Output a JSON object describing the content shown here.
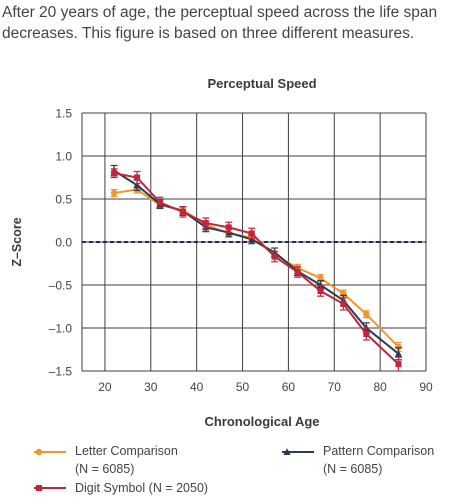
{
  "caption": "After 20 years of age, the perceptual speed across the life span decreases. This figure is based on three different measures.",
  "chart_data": {
    "type": "line",
    "title": "Perceptual Speed",
    "xlabel": "Chronological Age",
    "ylabel": "Z–Score",
    "xlim": [
      15,
      90
    ],
    "ylim": [
      -1.5,
      1.5
    ],
    "x_ticks": [
      "20",
      "30",
      "40",
      "50",
      "60",
      "70",
      "80",
      "90"
    ],
    "y_ticks": [
      "1.5",
      "1.0",
      "0.5",
      "0.0",
      "–0.5",
      "–1.0",
      "–1.5"
    ],
    "grid": true,
    "reference_line": {
      "y": 0.0,
      "style": "dashed",
      "color": "#1f2a55"
    },
    "legend_position": "bottom",
    "series": [
      {
        "name": "Letter Comparison",
        "name_sub": "(N = 6085)",
        "color": "#f0962d",
        "marker": "circle",
        "x": [
          22,
          27,
          32,
          37,
          42,
          47,
          52,
          57,
          62,
          67,
          72,
          77,
          84
        ],
        "y": [
          0.57,
          0.61,
          0.43,
          0.37,
          0.2,
          0.1,
          0.05,
          -0.15,
          -0.3,
          -0.42,
          -0.6,
          -0.84,
          -1.22
        ],
        "err": [
          0.04,
          0.04,
          0.04,
          0.04,
          0.04,
          0.04,
          0.04,
          0.04,
          0.04,
          0.04,
          0.04,
          0.04,
          0.05
        ]
      },
      {
        "name": "Pattern Comparison",
        "name_sub": "(N = 6085)",
        "color": "#2b3a55",
        "marker": "triangle",
        "x": [
          22,
          27,
          32,
          37,
          42,
          47,
          52,
          57,
          62,
          67,
          72,
          77,
          84
        ],
        "y": [
          0.83,
          0.66,
          0.44,
          0.36,
          0.17,
          0.11,
          0.03,
          -0.12,
          -0.34,
          -0.5,
          -0.68,
          -1.0,
          -1.3
        ],
        "err": [
          0.06,
          0.06,
          0.05,
          0.05,
          0.05,
          0.05,
          0.05,
          0.05,
          0.05,
          0.05,
          0.06,
          0.06,
          0.07
        ]
      },
      {
        "name": "Digit Symbol",
        "name_suffix": "(N = 2050)",
        "color": "#c2253c",
        "marker": "square",
        "x": [
          22,
          27,
          32,
          37,
          42,
          47,
          52,
          57,
          62,
          67,
          72,
          77,
          84
        ],
        "y": [
          0.8,
          0.75,
          0.46,
          0.35,
          0.22,
          0.17,
          0.1,
          -0.17,
          -0.35,
          -0.57,
          -0.72,
          -1.07,
          -1.42
        ],
        "err": [
          0.05,
          0.07,
          0.06,
          0.06,
          0.06,
          0.06,
          0.06,
          0.06,
          0.06,
          0.06,
          0.07,
          0.07,
          0.08
        ]
      }
    ]
  }
}
